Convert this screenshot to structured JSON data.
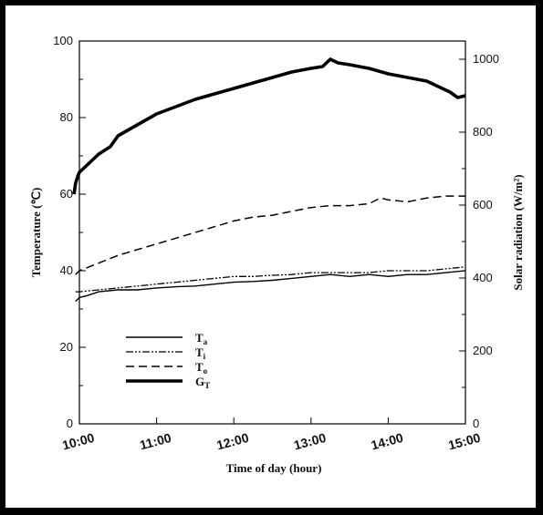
{
  "chart_data": {
    "type": "line",
    "xlabel": "Time of day (hour)",
    "ylabel_left": "Temperature (℃)",
    "ylabel_right": "Solar radiation (W/m²)",
    "x_ticks": [
      "10:00",
      "11:00",
      "12:00",
      "13:00",
      "14:00",
      "15:00"
    ],
    "xlim": [
      10.0,
      15.0
    ],
    "ylim_left": [
      0,
      100
    ],
    "ylim_right": [
      0,
      1050
    ],
    "y_ticks_left": [
      0,
      20,
      40,
      60,
      80,
      100
    ],
    "y_ticks_right": [
      0,
      200,
      400,
      600,
      800,
      1000
    ],
    "grid": false,
    "legend_position": "bottom-left",
    "series": [
      {
        "name": "Ta",
        "axis": "left",
        "style": "solid-thin",
        "x": [
          9.95,
          10.0,
          10.1,
          10.25,
          10.5,
          10.75,
          11.0,
          11.25,
          11.5,
          11.75,
          12.0,
          12.25,
          12.5,
          12.75,
          13.0,
          13.25,
          13.5,
          13.75,
          14.0,
          14.25,
          14.5,
          14.75,
          15.0
        ],
        "values": [
          32.0,
          33.0,
          33.5,
          34.5,
          35.0,
          35.0,
          35.5,
          35.8,
          36.0,
          36.5,
          37.0,
          37.2,
          37.5,
          38.0,
          38.5,
          39.0,
          38.5,
          39.0,
          38.5,
          39.0,
          39.0,
          39.5,
          40.0
        ]
      },
      {
        "name": "Ti",
        "axis": "left",
        "style": "dash-dot-dot",
        "x": [
          9.95,
          10.0,
          10.25,
          10.5,
          10.75,
          11.0,
          11.25,
          11.5,
          11.75,
          12.0,
          12.25,
          12.5,
          12.75,
          13.0,
          13.25,
          13.5,
          13.75,
          14.0,
          14.25,
          14.5,
          14.75,
          15.0
        ],
        "values": [
          34.5,
          34.5,
          35.0,
          35.5,
          36.0,
          36.5,
          37.0,
          37.5,
          38.0,
          38.5,
          38.5,
          38.8,
          39.0,
          39.5,
          39.5,
          39.5,
          39.5,
          40.0,
          40.0,
          40.0,
          40.5,
          41.0
        ]
      },
      {
        "name": "To",
        "axis": "left",
        "style": "dashed",
        "x": [
          9.95,
          10.0,
          10.25,
          10.5,
          10.75,
          11.0,
          11.25,
          11.5,
          11.75,
          12.0,
          12.25,
          12.5,
          12.75,
          13.0,
          13.25,
          13.5,
          13.75,
          13.9,
          14.0,
          14.25,
          14.5,
          14.75,
          15.0
        ],
        "values": [
          39.0,
          40.0,
          42.0,
          44.0,
          45.5,
          47.0,
          48.5,
          50.0,
          51.5,
          53.0,
          54.0,
          54.5,
          55.5,
          56.5,
          57.0,
          57.0,
          57.5,
          59.0,
          58.5,
          58.0,
          59.0,
          59.5,
          59.5
        ]
      },
      {
        "name": "GT",
        "axis": "right",
        "style": "solid-thick",
        "x": [
          9.93,
          9.95,
          9.98,
          10.0,
          10.1,
          10.25,
          10.4,
          10.5,
          10.75,
          11.0,
          11.25,
          11.5,
          11.75,
          12.0,
          12.25,
          12.5,
          12.75,
          13.0,
          13.15,
          13.25,
          13.35,
          13.5,
          13.75,
          14.0,
          14.25,
          14.5,
          14.7,
          14.8,
          14.9,
          15.0
        ],
        "values": [
          630,
          660,
          680,
          690,
          710,
          740,
          760,
          790,
          820,
          850,
          870,
          890,
          905,
          920,
          935,
          950,
          965,
          975,
          980,
          1000,
          990,
          985,
          975,
          960,
          950,
          940,
          920,
          910,
          895,
          900
        ]
      }
    ]
  },
  "legend": [
    {
      "sym": "T",
      "sub": "a"
    },
    {
      "sym": "T",
      "sub": "i"
    },
    {
      "sym": "T",
      "sub": "o"
    },
    {
      "sym": "G",
      "sub": "T"
    }
  ]
}
